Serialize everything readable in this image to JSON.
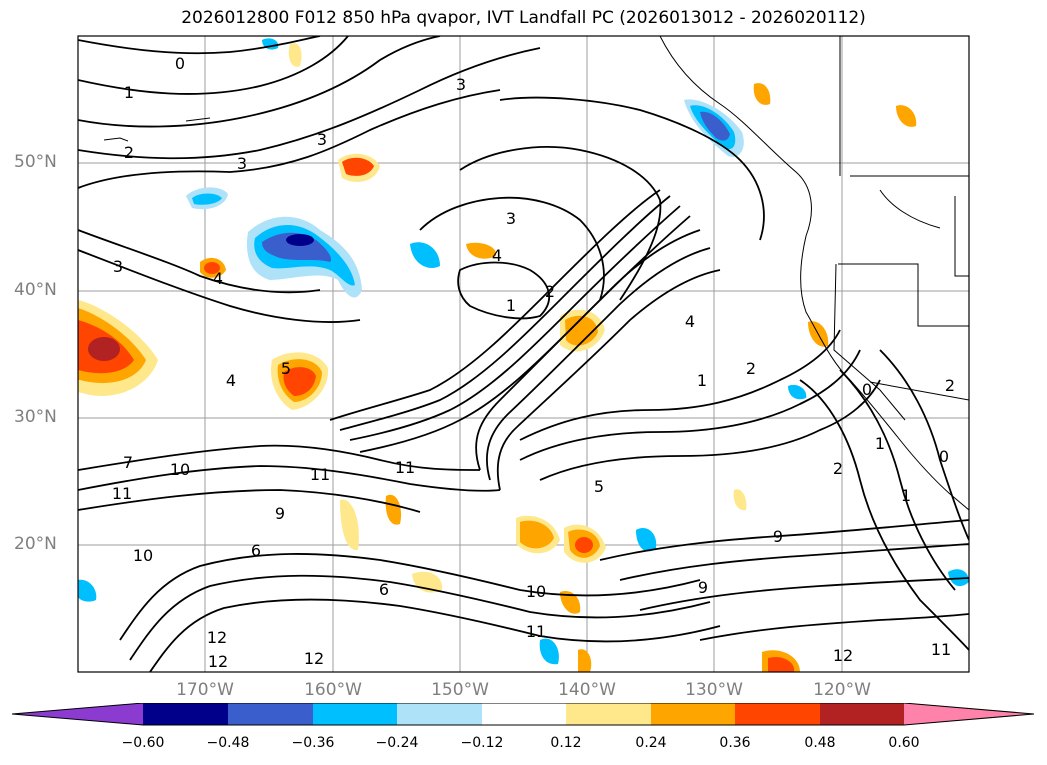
{
  "title": "2026012800 F012 850 hPa qvapor, IVT Landfall PC (2026013012 - 2026020112)",
  "map": {
    "lat_ticks": [
      "50°N",
      "40°N",
      "30°N",
      "20°N"
    ],
    "lon_ticks": [
      "170°W",
      "160°W",
      "150°W",
      "140°W",
      "130°W",
      "120°W"
    ],
    "contour_labels": [
      "0",
      "1",
      "2",
      "3",
      "3",
      "3",
      "3",
      "3",
      "4",
      "4",
      "4",
      "5",
      "5",
      "6",
      "6",
      "7",
      "9",
      "10",
      "10",
      "11",
      "11",
      "11",
      "12",
      "12",
      "12",
      "1",
      "2",
      "4",
      "1",
      "2",
      "9",
      "9",
      "10",
      "11",
      "1",
      "0",
      "2",
      "1",
      "0",
      "11",
      "12",
      "2"
    ]
  },
  "colorbar": {
    "ticks": [
      "−0.60",
      "−0.48",
      "−0.36",
      "−0.24",
      "−0.12",
      "0.12",
      "0.24",
      "0.36",
      "0.48",
      "0.60"
    ],
    "colors": {
      "lt_m060": "#8c3bd1",
      "m060_m048": "#00008b",
      "m048_m036": "#3a5fcd",
      "m036_m024": "#00bfff",
      "m024_m012": "#aee2f8",
      "m012_012": "#ffffff",
      "p012_024": "#ffe88c",
      "p024_036": "#ffa500",
      "p036_048": "#ff4500",
      "p048_060": "#b22222",
      "gt_060": "#ff82ab"
    }
  }
}
